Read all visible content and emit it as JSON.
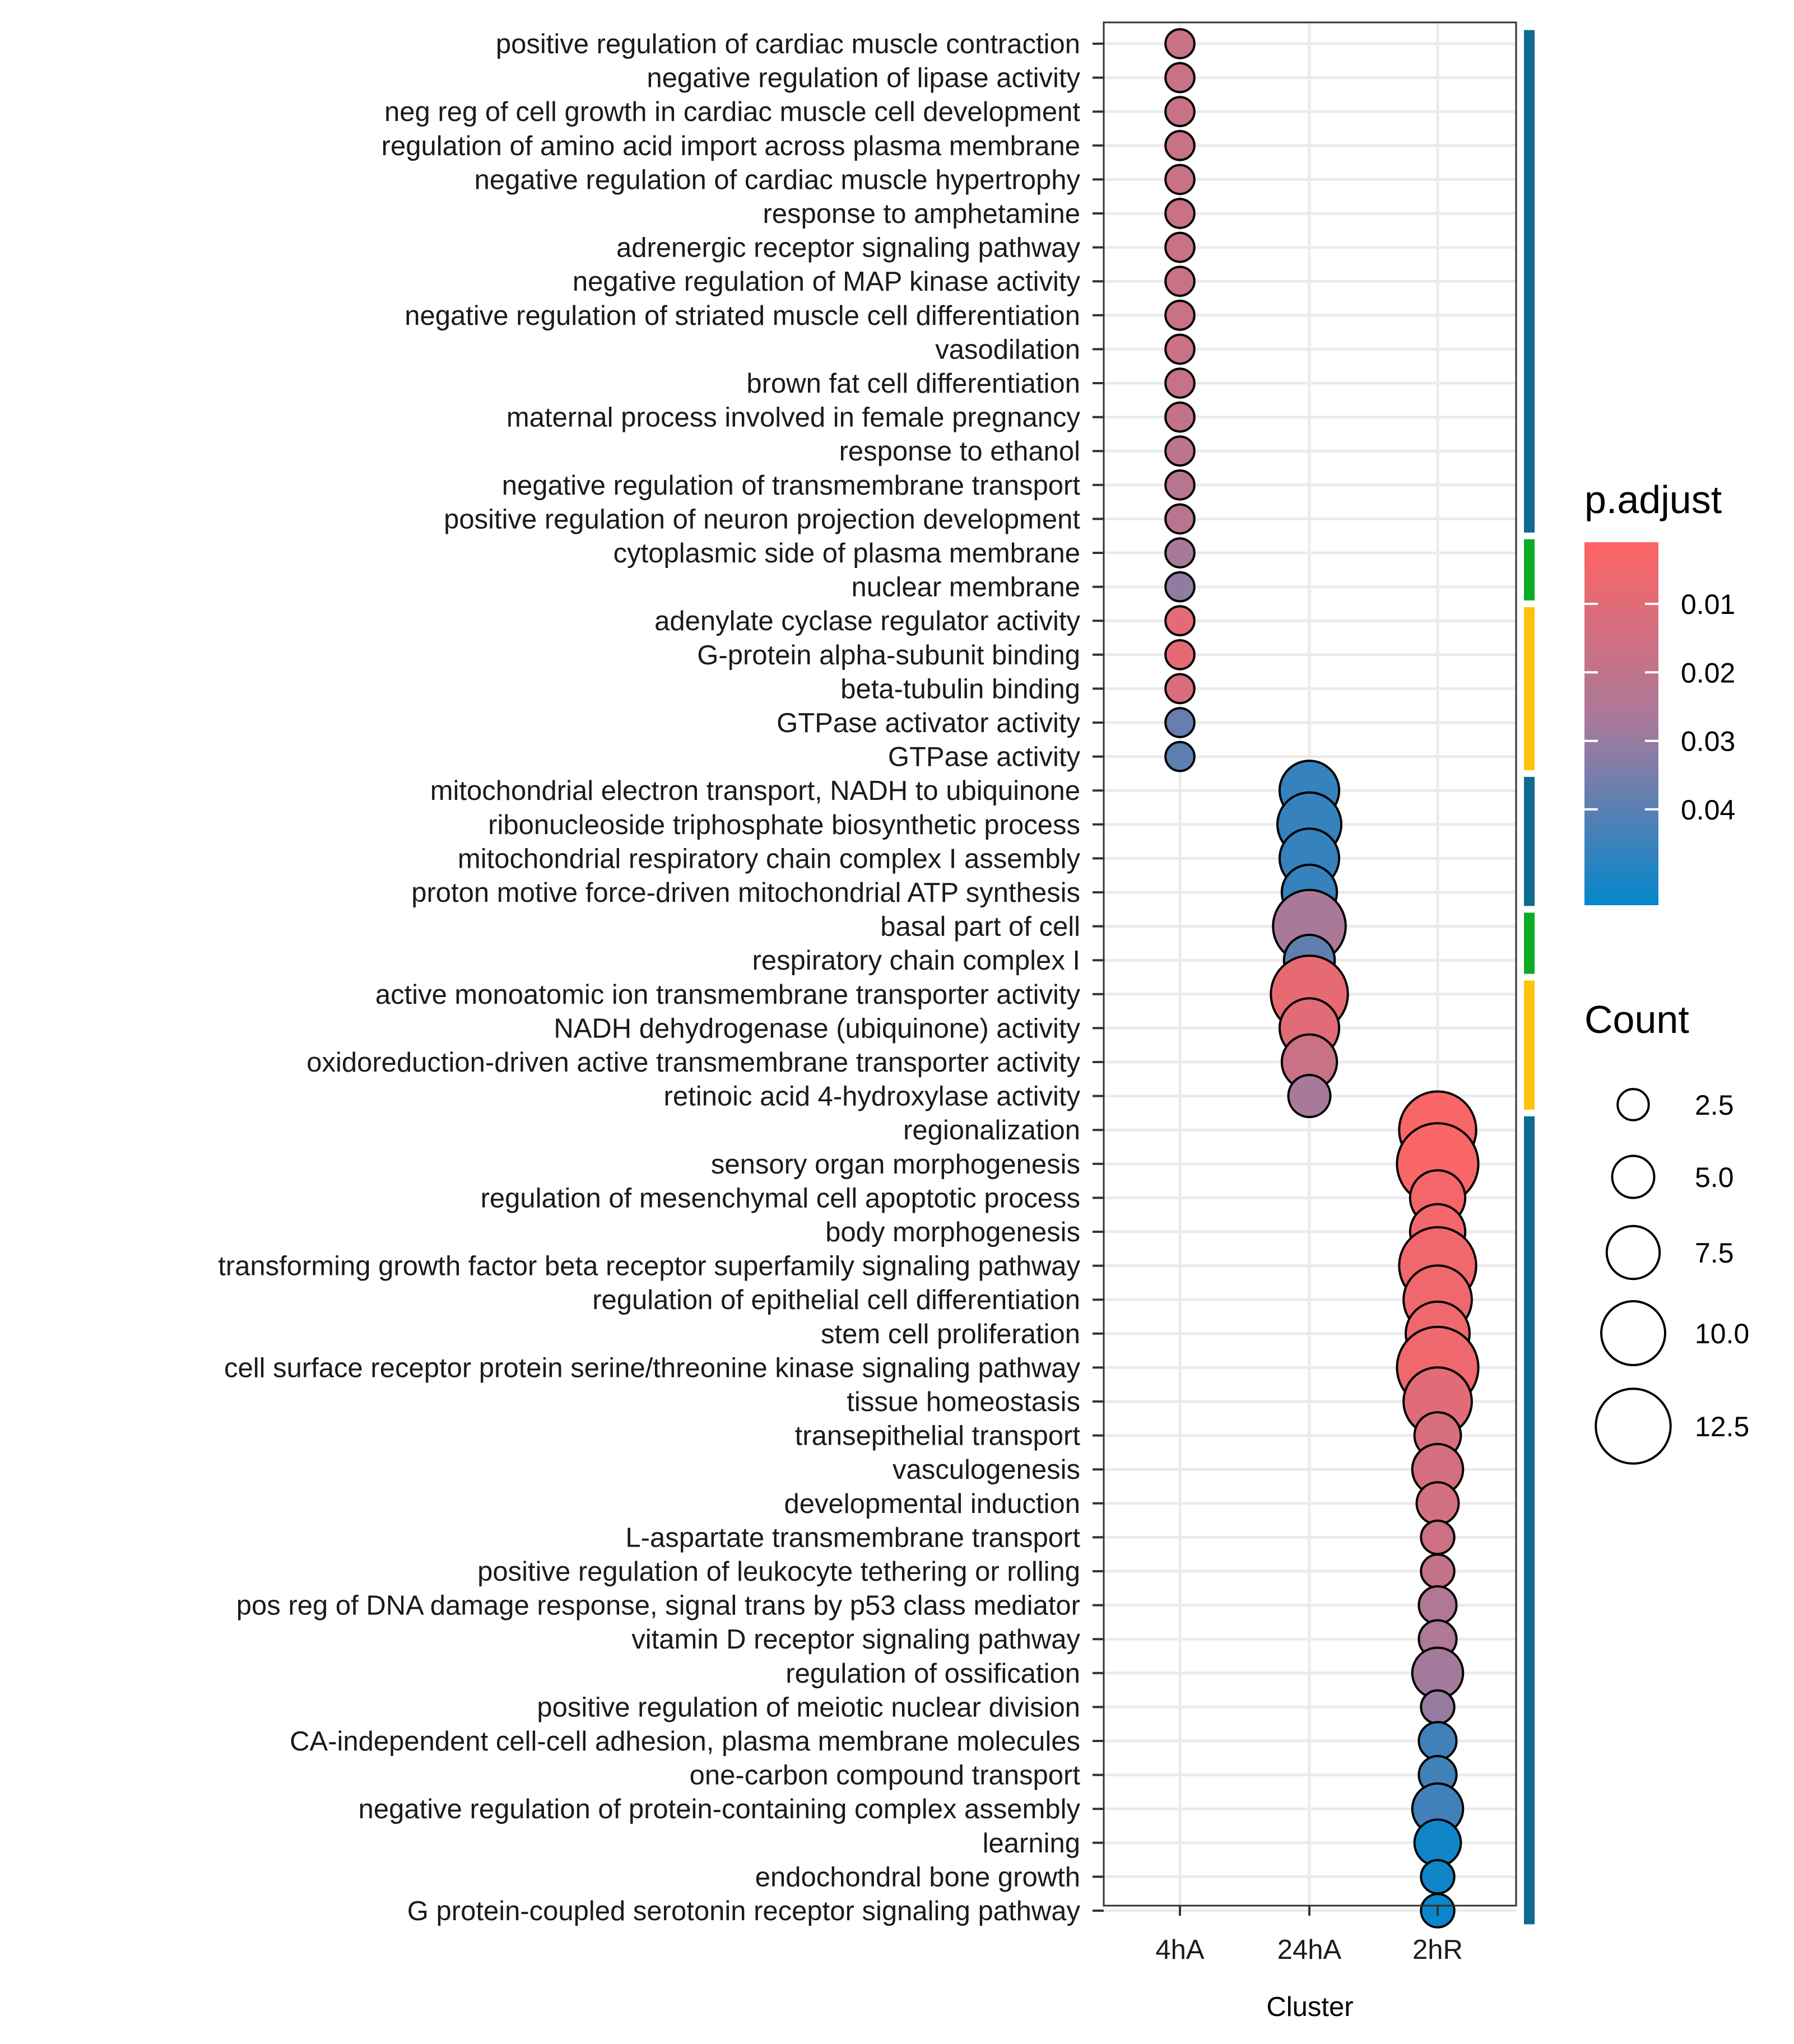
{
  "chart_data": {
    "type": "scatter",
    "subtype": "dot-plot",
    "xlabel": "Cluster",
    "x": [
      "4hA",
      "24hA",
      "2hR"
    ],
    "categories": [
      "positive regulation of cardiac muscle contraction",
      "negative regulation of lipase activity",
      "neg reg of cell growth in cardiac muscle cell development",
      "regulation of amino acid import across plasma membrane",
      "negative regulation of cardiac muscle hypertrophy",
      "response to amphetamine",
      "adrenergic receptor signaling pathway",
      "negative regulation of MAP kinase activity",
      "negative regulation of striated muscle cell differentiation",
      "vasodilation",
      "brown fat cell differentiation",
      "maternal process involved in female pregnancy",
      "response to ethanol",
      "negative regulation of transmembrane transport",
      "positive regulation of neuron projection development",
      "cytoplasmic side of plasma membrane",
      "nuclear membrane",
      "adenylate cyclase regulator activity",
      "G-protein alpha-subunit binding",
      "beta-tubulin binding",
      "GTPase activator activity",
      "GTPase activity",
      "mitochondrial electron transport, NADH to ubiquinone",
      "ribonucleoside triphosphate biosynthetic process",
      "mitochondrial respiratory chain complex I assembly",
      "proton motive force-driven mitochondrial ATP synthesis",
      "basal part of cell",
      "respiratory chain complex I",
      "active monoatomic ion transmembrane transporter activity",
      "NADH dehydrogenase (ubiquinone) activity",
      "oxidoreduction-driven active transmembrane transporter activity",
      "retinoic acid 4-hydroxylase activity",
      "regionalization",
      "sensory organ morphogenesis",
      "regulation of mesenchymal cell apoptotic process",
      "body morphogenesis",
      "transforming growth factor beta receptor superfamily signaling pathway",
      "regulation of epithelial cell differentiation",
      "stem cell proliferation",
      "cell surface receptor protein serine/threonine kinase signaling pathway",
      "tissue homeostasis",
      "transepithelial transport",
      "vasculogenesis",
      "developmental induction",
      "L-aspartate transmembrane transport",
      "positive regulation of leukocyte tethering or rolling",
      "pos reg of DNA damage response, signal trans by p53 class mediator",
      "vitamin D receptor signaling pathway",
      "regulation of ossification",
      "positive regulation of meiotic nuclear division",
      "CA-independent cell-cell adhesion, plasma membrane molecules",
      "one-carbon compound transport",
      "negative regulation of protein-containing complex assembly",
      "learning",
      "endochondral bone growth",
      "G protein-coupled serotonin receptor signaling pathway"
    ],
    "points": [
      {
        "cluster": "4hA",
        "count": 2,
        "p_adjust": 0.017
      },
      {
        "cluster": "4hA",
        "count": 2,
        "p_adjust": 0.017
      },
      {
        "cluster": "4hA",
        "count": 2,
        "p_adjust": 0.017
      },
      {
        "cluster": "4hA",
        "count": 2,
        "p_adjust": 0.017
      },
      {
        "cluster": "4hA",
        "count": 2,
        "p_adjust": 0.017
      },
      {
        "cluster": "4hA",
        "count": 2,
        "p_adjust": 0.017
      },
      {
        "cluster": "4hA",
        "count": 2,
        "p_adjust": 0.017
      },
      {
        "cluster": "4hA",
        "count": 2,
        "p_adjust": 0.017
      },
      {
        "cluster": "4hA",
        "count": 2,
        "p_adjust": 0.017
      },
      {
        "cluster": "4hA",
        "count": 2,
        "p_adjust": 0.017
      },
      {
        "cluster": "4hA",
        "count": 2,
        "p_adjust": 0.018
      },
      {
        "cluster": "4hA",
        "count": 2,
        "p_adjust": 0.019
      },
      {
        "cluster": "4hA",
        "count": 2,
        "p_adjust": 0.021
      },
      {
        "cluster": "4hA",
        "count": 2,
        "p_adjust": 0.022
      },
      {
        "cluster": "4hA",
        "count": 2,
        "p_adjust": 0.022
      },
      {
        "cluster": "4hA",
        "count": 2,
        "p_adjust": 0.027
      },
      {
        "cluster": "4hA",
        "count": 2,
        "p_adjust": 0.031
      },
      {
        "cluster": "4hA",
        "count": 2,
        "p_adjust": 0.009
      },
      {
        "cluster": "4hA",
        "count": 2,
        "p_adjust": 0.009
      },
      {
        "cluster": "4hA",
        "count": 2,
        "p_adjust": 0.012
      },
      {
        "cluster": "4hA",
        "count": 2,
        "p_adjust": 0.038
      },
      {
        "cluster": "4hA",
        "count": 2,
        "p_adjust": 0.04
      },
      {
        "cluster": "24hA",
        "count": 9,
        "p_adjust": 0.046
      },
      {
        "cluster": "24hA",
        "count": 10,
        "p_adjust": 0.046
      },
      {
        "cluster": "24hA",
        "count": 9,
        "p_adjust": 0.046
      },
      {
        "cluster": "24hA",
        "count": 8,
        "p_adjust": 0.046
      },
      {
        "cluster": "24hA",
        "count": 12,
        "p_adjust": 0.026
      },
      {
        "cluster": "24hA",
        "count": 7,
        "p_adjust": 0.039
      },
      {
        "cluster": "24hA",
        "count": 13,
        "p_adjust": 0.008
      },
      {
        "cluster": "24hA",
        "count": 9,
        "p_adjust": 0.01
      },
      {
        "cluster": "24hA",
        "count": 8,
        "p_adjust": 0.017
      },
      {
        "cluster": "24hA",
        "count": 5,
        "p_adjust": 0.027
      },
      {
        "cluster": "2hR",
        "count": 13,
        "p_adjust": 0.003
      },
      {
        "cluster": "2hR",
        "count": 14,
        "p_adjust": 0.003
      },
      {
        "cluster": "2hR",
        "count": 8,
        "p_adjust": 0.004
      },
      {
        "cluster": "2hR",
        "count": 8,
        "p_adjust": 0.005
      },
      {
        "cluster": "2hR",
        "count": 13,
        "p_adjust": 0.005
      },
      {
        "cluster": "2hR",
        "count": 11,
        "p_adjust": 0.006
      },
      {
        "cluster": "2hR",
        "count": 10,
        "p_adjust": 0.006
      },
      {
        "cluster": "2hR",
        "count": 14,
        "p_adjust": 0.006
      },
      {
        "cluster": "2hR",
        "count": 11,
        "p_adjust": 0.01
      },
      {
        "cluster": "2hR",
        "count": 6,
        "p_adjust": 0.013
      },
      {
        "cluster": "2hR",
        "count": 7,
        "p_adjust": 0.014
      },
      {
        "cluster": "2hR",
        "count": 5,
        "p_adjust": 0.015
      },
      {
        "cluster": "2hR",
        "count": 3,
        "p_adjust": 0.016
      },
      {
        "cluster": "2hR",
        "count": 3,
        "p_adjust": 0.019
      },
      {
        "cluster": "2hR",
        "count": 4,
        "p_adjust": 0.024
      },
      {
        "cluster": "2hR",
        "count": 4,
        "p_adjust": 0.025
      },
      {
        "cluster": "2hR",
        "count": 7,
        "p_adjust": 0.028
      },
      {
        "cluster": "2hR",
        "count": 3,
        "p_adjust": 0.03
      },
      {
        "cluster": "2hR",
        "count": 4,
        "p_adjust": 0.044
      },
      {
        "cluster": "2hR",
        "count": 4,
        "p_adjust": 0.044
      },
      {
        "cluster": "2hR",
        "count": 7,
        "p_adjust": 0.044
      },
      {
        "cluster": "2hR",
        "count": 6,
        "p_adjust": 0.052
      },
      {
        "cluster": "2hR",
        "count": 3,
        "p_adjust": 0.052
      },
      {
        "cluster": "2hR",
        "count": 3,
        "p_adjust": 0.053
      }
    ],
    "side_bar_groups": [
      {
        "from": 0,
        "to": 14,
        "color": "#0e6a8f"
      },
      {
        "from": 15,
        "to": 16,
        "color": "#0bab27"
      },
      {
        "from": 17,
        "to": 21,
        "color": "#ffc20a"
      },
      {
        "from": 22,
        "to": 25,
        "color": "#0e6a8f"
      },
      {
        "from": 26,
        "to": 27,
        "color": "#0bab27"
      },
      {
        "from": 28,
        "to": 31,
        "color": "#ffc20a"
      },
      {
        "from": 32,
        "to": 55,
        "color": "#0e6a8f"
      }
    ],
    "color_legend": {
      "title": "p.adjust",
      "ticks": [
        0.01,
        0.02,
        0.03,
        0.04
      ],
      "tick_labels": [
        "0.01",
        "0.02",
        "0.03",
        "0.04"
      ],
      "range": [
        0.001,
        0.054
      ],
      "low_color": "#ff6464",
      "mid_color": "#a67a9b",
      "high_color": "#0486cc"
    },
    "size_legend": {
      "title": "Count",
      "values": [
        2.5,
        5.0,
        7.5,
        10.0,
        12.5
      ],
      "labels": [
        "2.5",
        "5.0",
        "7.5",
        "10.0",
        "12.5"
      ]
    },
    "grid": true,
    "legend_position": "right"
  }
}
